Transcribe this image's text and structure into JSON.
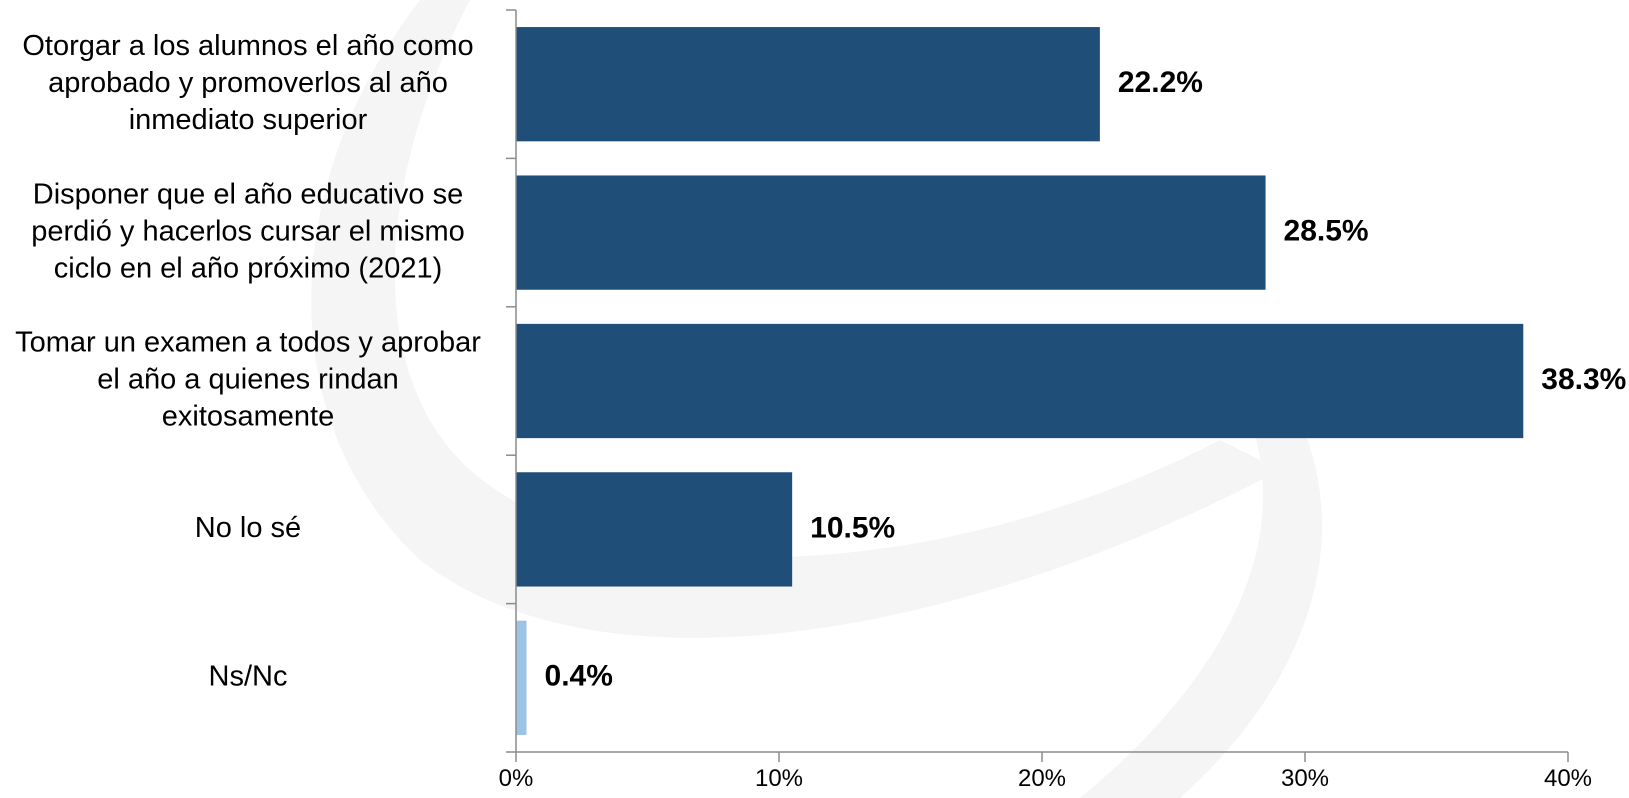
{
  "chart_data": {
    "type": "bar",
    "orientation": "horizontal",
    "categories": [
      [
        "Otorgar a los alumnos el año como",
        "aprobado y promoverlos al año",
        "inmediato superior"
      ],
      [
        "Disponer que el año educativo se",
        "perdió y hacerlos cursar el mismo",
        "ciclo en el año próximo (2021)"
      ],
      [
        "Tomar un examen a todos y aprobar",
        "el año a quienes rindan",
        "exitosamente"
      ],
      [
        "No lo sé"
      ],
      [
        "Ns/Nc"
      ]
    ],
    "values": [
      22.2,
      28.5,
      38.3,
      10.5,
      0.4
    ],
    "value_labels": [
      "22.2%",
      "28.5%",
      "38.3%",
      "10.5%",
      "0.4%"
    ],
    "bar_colors": [
      "#1f4e79",
      "#1f4e79",
      "#1f4e79",
      "#1f4e79",
      "#9dc3e6"
    ],
    "xlim": [
      0,
      40
    ],
    "x_ticks": [
      0,
      10,
      20,
      30,
      40
    ],
    "x_tick_labels": [
      "0%",
      "10%",
      "20%",
      "30%",
      "40%"
    ],
    "grid": false,
    "legend": "none",
    "title": "",
    "xlabel": "",
    "ylabel": ""
  }
}
